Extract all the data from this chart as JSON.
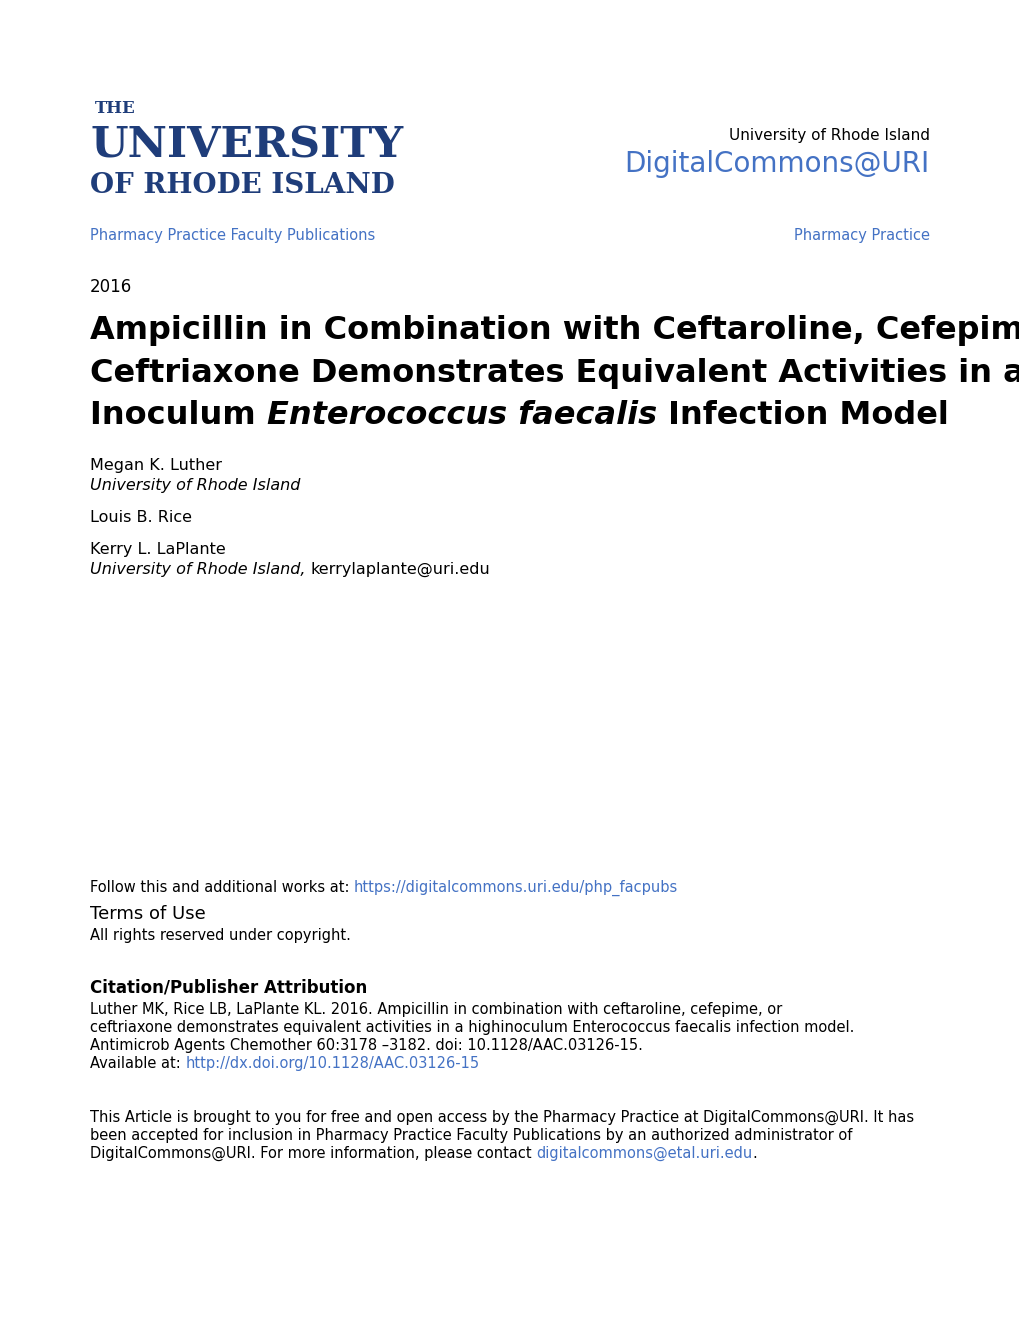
{
  "background_color": "#ffffff",
  "uri_blue": "#1f3d7a",
  "link_blue": "#4472c4",
  "text_black": "#000000",
  "gray_line": "#bbbbbb",
  "logo_the": "THE",
  "logo_university": "UNIVERSITY",
  "logo_of_rhode_island": "OF RHODE ISLAND",
  "right_header_line1": "University of Rhode Island",
  "right_header_line2": "DigitalCommons@URI",
  "nav_left": "Pharmacy Practice Faculty Publications",
  "nav_right": "Pharmacy Practice",
  "year": "2016",
  "title_line1": "Ampicillin in Combination with Ceftaroline, Cefepime, or",
  "title_line2": "Ceftriaxone Demonstrates Equivalent Activities in a High-",
  "title_line3_regular": "Inoculum ",
  "title_line3_italic": "Enterococcus faecalis",
  "title_line3_end": " Infection Model",
  "author1_name": "Megan K. Luther",
  "author1_affil": "University of Rhode Island",
  "author2_name": "Louis B. Rice",
  "author3_name": "Kerry L. LaPlante",
  "author3_affil_italic": "University of Rhode Island",
  "author3_sep": ", ",
  "author3_email": "kerrylaplante@uri.edu",
  "follow_text": "Follow this and additional works at: ",
  "follow_link": "https://digitalcommons.uri.edu/php_facpubs",
  "terms_title": "Terms of Use",
  "terms_text": "All rights reserved under copyright.",
  "citation_title": "Citation/Publisher Attribution",
  "citation_text1": "Luther MK, Rice LB, LaPlante KL. 2016. Ampicillin in combination with ceftaroline, cefepime, or",
  "citation_text2": "ceftriaxone demonstrates equivalent activities in a highinoculum Enterococcus faecalis infection model.",
  "citation_text3": "Antimicrob Agents Chemother 60:3178 –3182. doi: 10.1128/AAC.03126-15.",
  "citation_avail": "Available at: ",
  "citation_link": "http://dx.doi.org/10.1128/AAC.03126-15",
  "footer_text1": "This Article is brought to you for free and open access by the Pharmacy Practice at DigitalCommons@URI. It has",
  "footer_text2": "been accepted for inclusion in Pharmacy Practice Faculty Publications by an authorized administrator of",
  "footer_text3_pre": "DigitalCommons@URI. For more information, please contact ",
  "footer_link": "digitalcommons@etal.uri.edu",
  "footer_text3_post": "."
}
